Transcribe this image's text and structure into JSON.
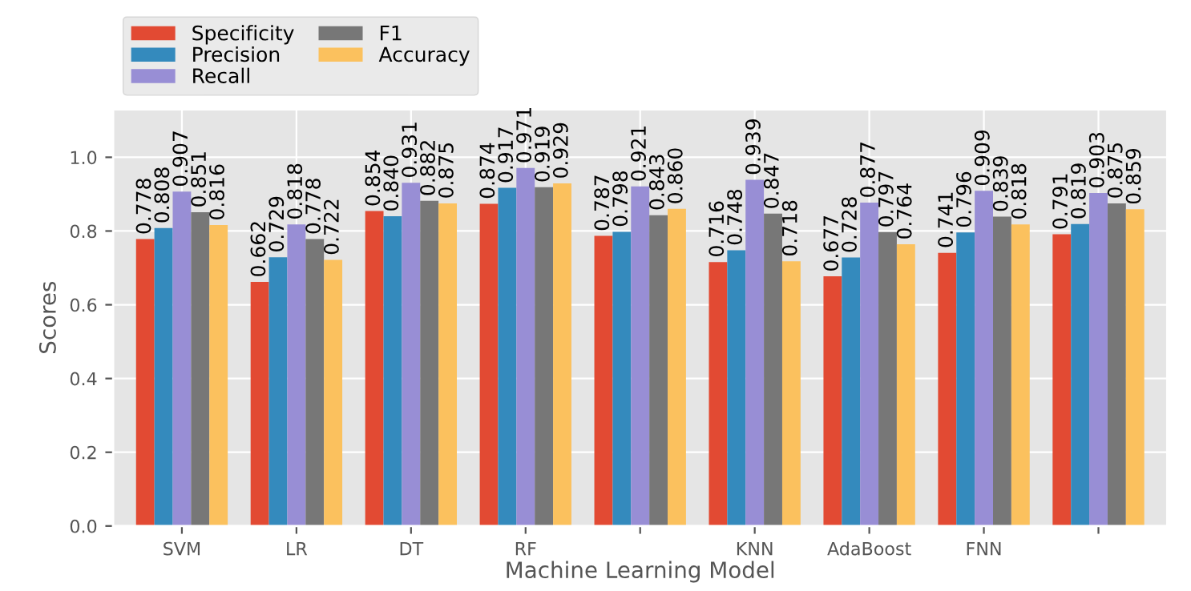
{
  "chart_data": {
    "type": "bar",
    "xlabel": "Machine Learning Model",
    "ylabel": "Scores",
    "categories": [
      "SVM",
      "LR",
      "DT",
      "RF",
      null,
      "KNN",
      "AdaBoost",
      "FNN",
      null
    ],
    "series": [
      {
        "name": "Specificity",
        "color": "#e24a33",
        "values": [
          0.778,
          0.662,
          0.854,
          0.874,
          0.787,
          0.716,
          0.677,
          0.741,
          0.791
        ],
        "value_labels": [
          "0.778",
          "0.662",
          "0.854",
          "0.874",
          "0.787",
          "0.716",
          "0.677",
          "0.741",
          "0.791"
        ]
      },
      {
        "name": "Precision",
        "color": "#348abd",
        "values": [
          0.808,
          0.729,
          0.84,
          0.917,
          0.798,
          0.748,
          0.728,
          0.796,
          0.819
        ],
        "value_labels": [
          "0.808",
          "0.729",
          "0.840",
          "0.917",
          "0.798",
          "0.748",
          "0.728",
          "0.796",
          "0.819"
        ]
      },
      {
        "name": "Recall",
        "color": "#988ed5",
        "values": [
          0.907,
          0.818,
          0.931,
          0.971,
          0.921,
          0.939,
          0.877,
          0.909,
          0.903
        ],
        "value_labels": [
          "0.907",
          "0.818",
          "0.931",
          "0.971",
          "0.921",
          "0.939",
          "0.877",
          "0.909",
          "0.903"
        ]
      },
      {
        "name": "F1",
        "color": "#777777",
        "values": [
          0.851,
          0.778,
          0.882,
          0.919,
          0.843,
          0.847,
          0.797,
          0.839,
          0.875
        ],
        "value_labels": [
          "0.851",
          "0.778",
          "0.882",
          "0.919",
          "0.843",
          "0.847",
          "0.797",
          "0.839",
          "0.875"
        ]
      },
      {
        "name": "Accuracy",
        "color": "#fbc15e",
        "values": [
          0.816,
          0.722,
          0.875,
          0.929,
          0.86,
          0.718,
          0.764,
          0.818,
          0.859
        ],
        "value_labels": [
          "0.816",
          "0.722",
          "0.875",
          "0.929",
          "0.860",
          "0.718",
          "0.764",
          "0.818",
          "0.859"
        ]
      }
    ],
    "ylim": [
      0,
      1.13
    ],
    "yticks": [
      "0.0",
      "0.2",
      "0.4",
      "0.6",
      "0.8",
      "1.0"
    ],
    "grid": true,
    "legend": "top left"
  }
}
